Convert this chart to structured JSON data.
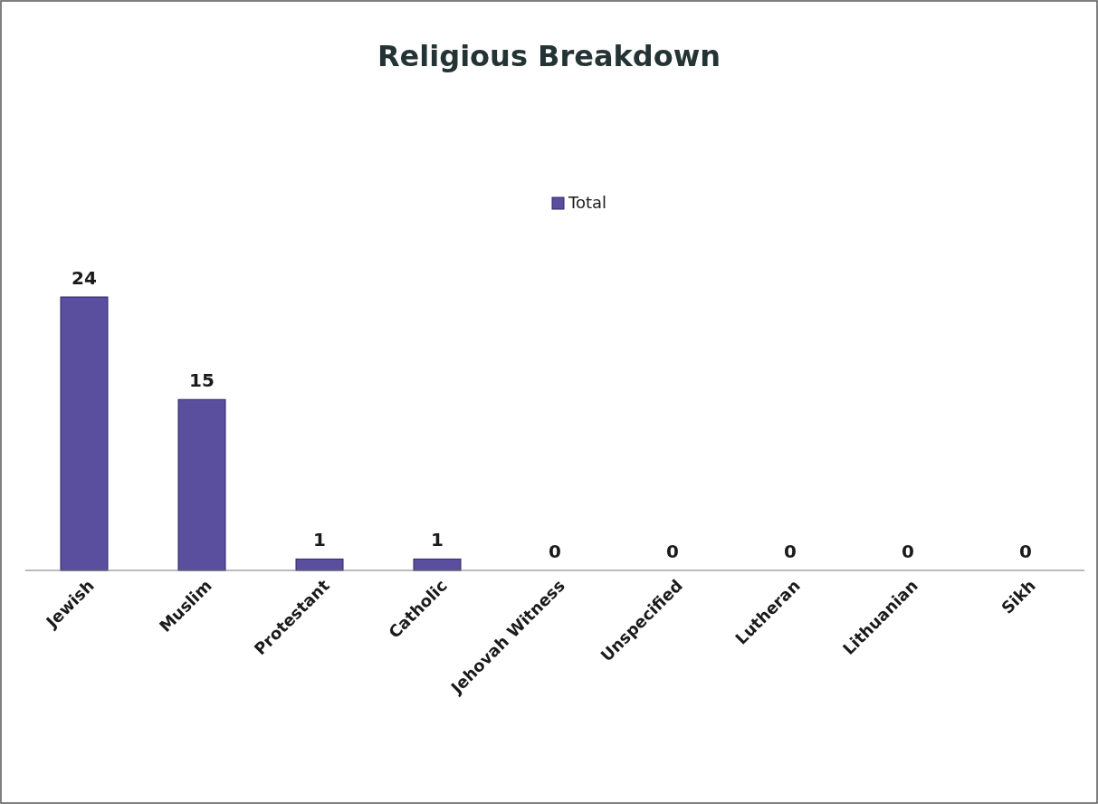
{
  "chart_data": {
    "type": "bar",
    "title": "Religious Breakdown",
    "categories": [
      "Jewish",
      "Muslim",
      "Protestant",
      "Catholic",
      "Jehovah Witness",
      "Unspecified",
      "Lutheran",
      "Lithuanian",
      "Sikh"
    ],
    "series": [
      {
        "name": "Total",
        "color": "#5a4f9e",
        "values": [
          24,
          15,
          1,
          1,
          0,
          0,
          0,
          0,
          0
        ]
      }
    ],
    "data_labels": true,
    "legend": "top"
  }
}
